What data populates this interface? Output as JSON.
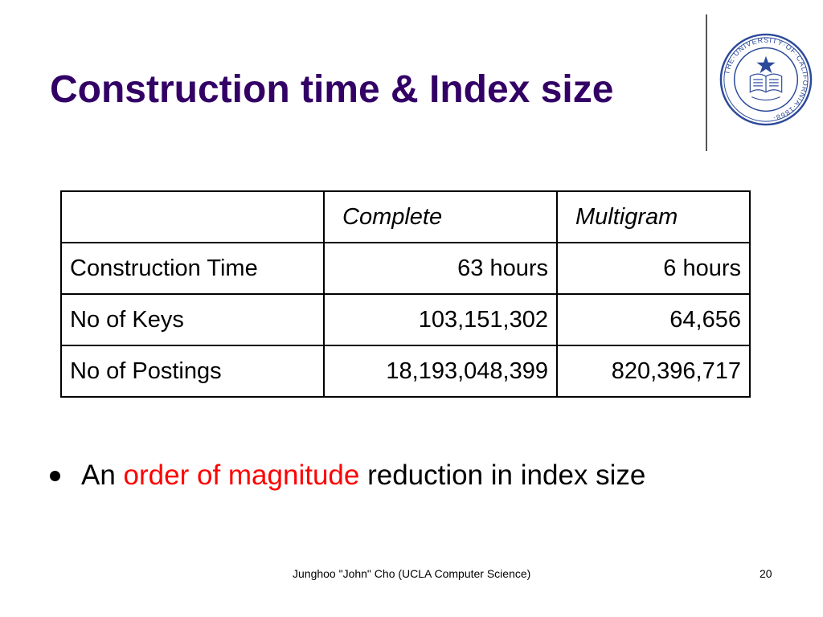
{
  "colors": {
    "title": "#330066",
    "accent": "#ff0000",
    "text": "#000000",
    "seal": "#2c4a9a"
  },
  "slide": {
    "title": "Construction time & Index size",
    "logo_icon": "university-of-california-seal-icon",
    "logo_text": "THE UNIVERSITY OF CALIFORNIA 1868 LET THERE BE LIGHT"
  },
  "table": {
    "headers": [
      "",
      "Complete",
      "Multigram"
    ],
    "rows": [
      {
        "label": "Construction Time",
        "complete": "63 hours",
        "multigram": "6 hours"
      },
      {
        "label": "No of Keys",
        "complete": "103,151,302",
        "multigram": "64,656"
      },
      {
        "label": "No of Postings",
        "complete": "18,193,048,399",
        "multigram": "820,396,717"
      }
    ]
  },
  "bullet": {
    "prefix": "An ",
    "highlight": "order of magnitude",
    "suffix": " reduction in index size"
  },
  "footer": {
    "text": "Junghoo \"John\" Cho (UCLA Computer Science)",
    "page_number": "20"
  }
}
